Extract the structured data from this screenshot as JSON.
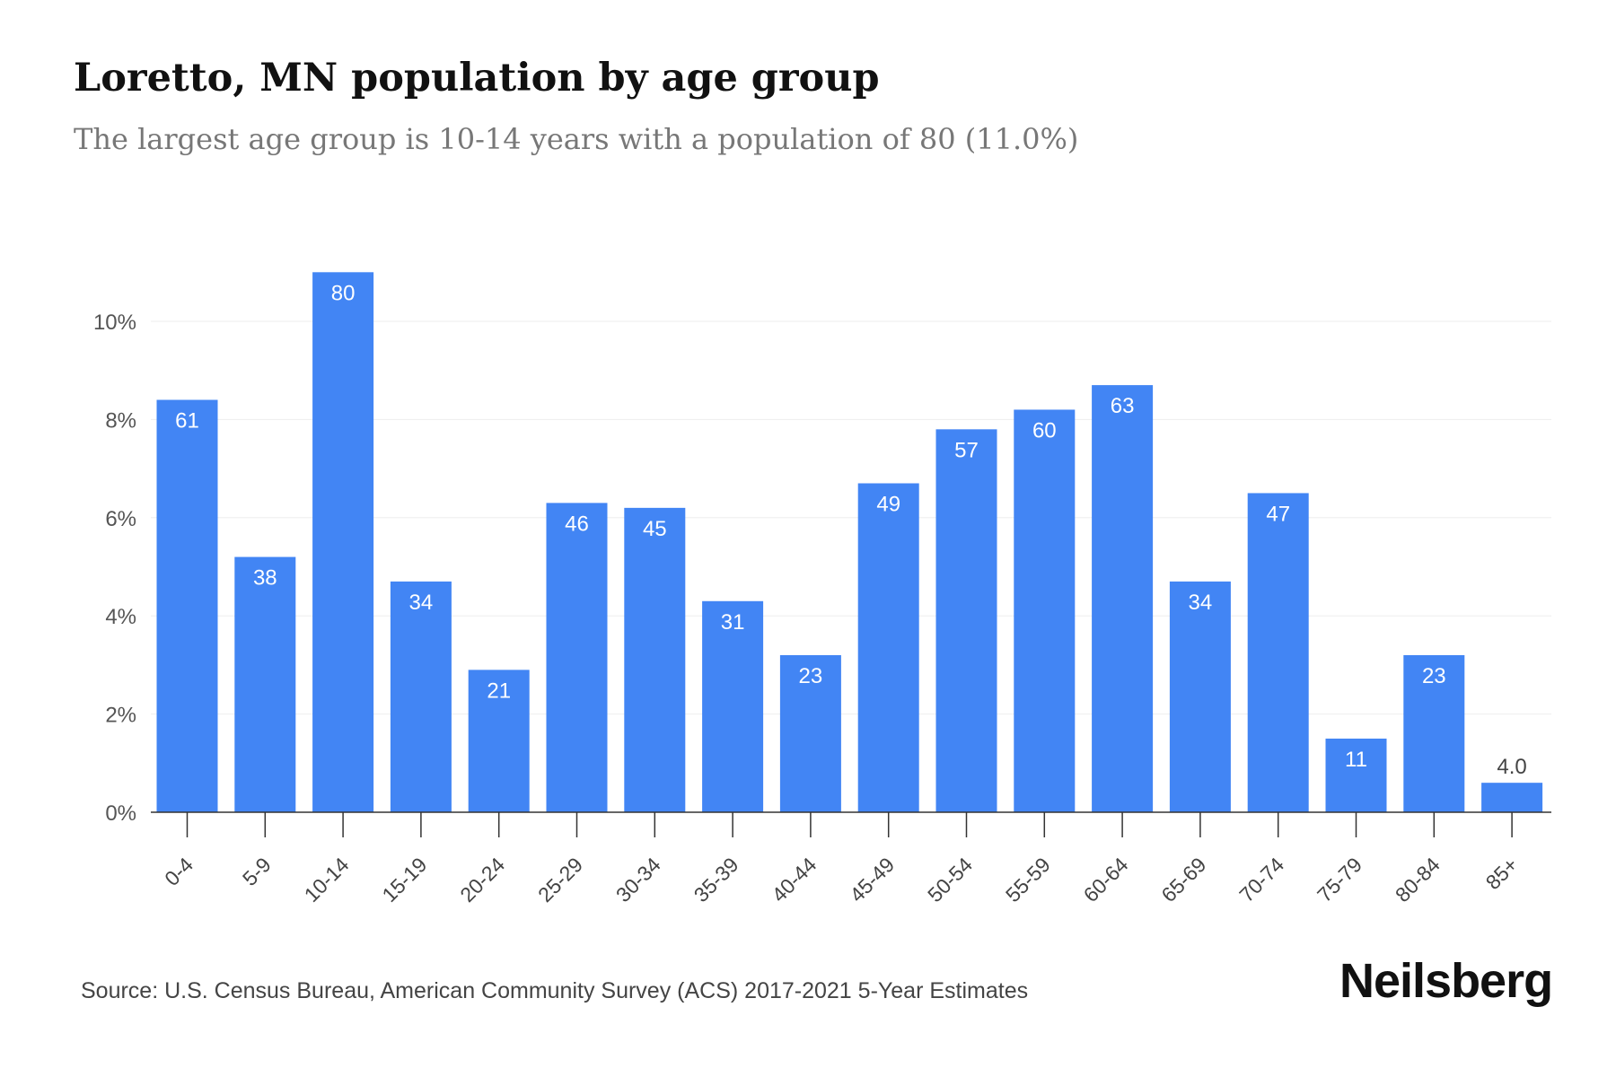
{
  "chart_data": {
    "type": "bar",
    "title": "Loretto, MN population by age group",
    "subtitle": "The largest age group is 10-14 years with a population of 80 (11.0%)",
    "categories": [
      "0-4",
      "5-9",
      "10-14",
      "15-19",
      "20-24",
      "25-29",
      "30-34",
      "35-39",
      "40-44",
      "45-49",
      "50-54",
      "55-59",
      "60-64",
      "65-69",
      "70-74",
      "75-79",
      "80-84",
      "85+"
    ],
    "series": [
      {
        "values": [
          8.4,
          5.2,
          11.0,
          4.7,
          2.9,
          6.3,
          6.2,
          4.3,
          3.2,
          6.7,
          7.8,
          8.2,
          8.7,
          4.7,
          6.5,
          1.5,
          3.2,
          0.6
        ],
        "labels": [
          "61",
          "38",
          "80",
          "34",
          "21",
          "46",
          "45",
          "31",
          "23",
          "49",
          "57",
          "60",
          "63",
          "34",
          "47",
          "11",
          "23",
          "4.0"
        ]
      }
    ],
    "yticks": [
      "0%",
      "2%",
      "4%",
      "6%",
      "8%",
      "10%"
    ],
    "ylim": [
      0,
      11
    ],
    "xlabel": "",
    "ylabel": "",
    "grid": true,
    "bar_color": "#4285f4"
  },
  "footer": {
    "source": "Source: U.S. Census Bureau, American Community Survey (ACS) 2017-2021 5-Year Estimates",
    "brand": "Neilsberg"
  }
}
